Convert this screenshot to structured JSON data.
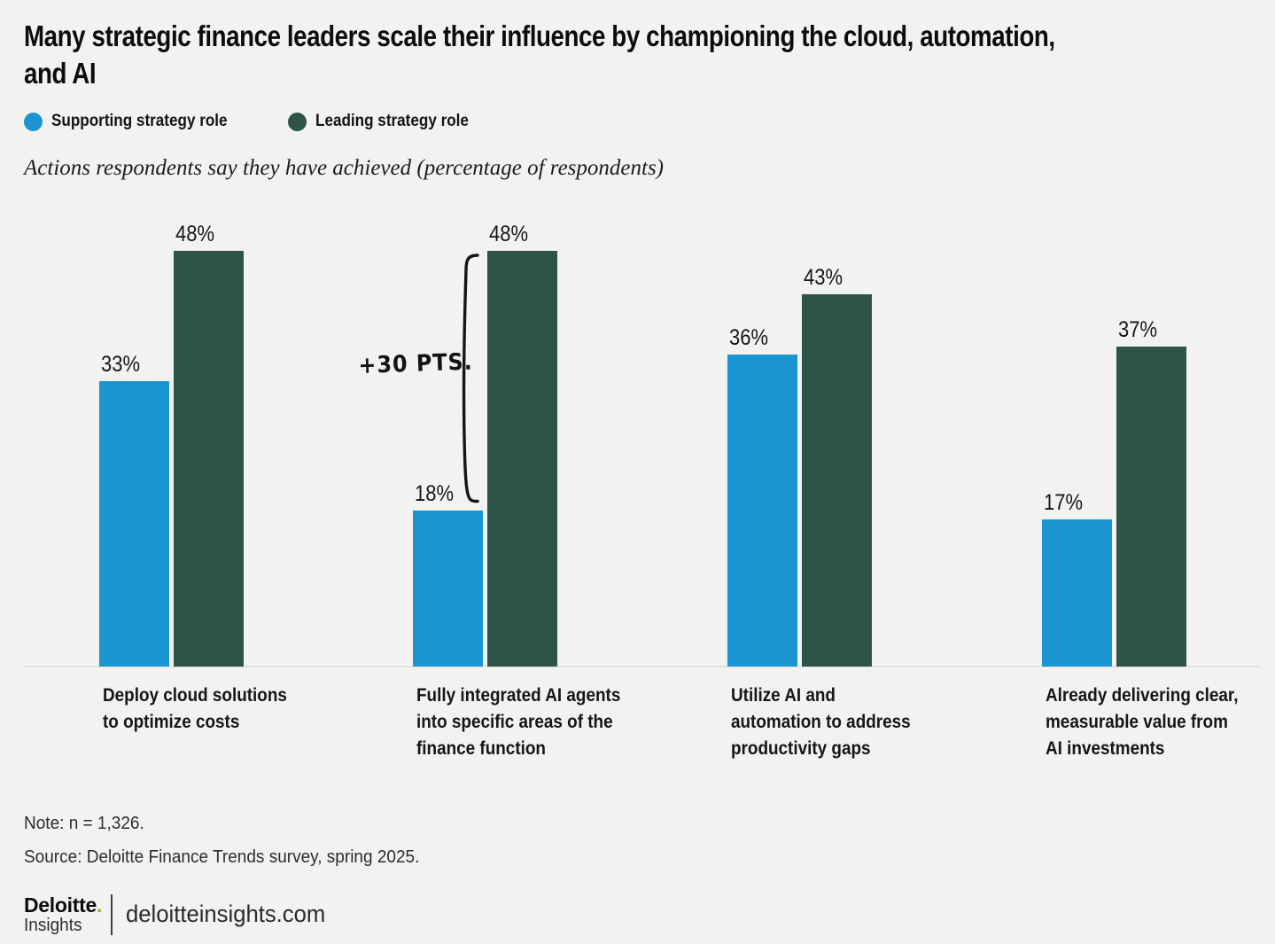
{
  "page": {
    "background": "#f2f2f1"
  },
  "title": "Many strategic finance leaders scale their influence by championing the cloud, automation, and AI",
  "title_lines": [
    "Many strategic finance leaders scale their influence by championing the cloud, automation,",
    "and AI"
  ],
  "legend": [
    {
      "label": "Supporting strategy role",
      "color": "#1b95d2"
    },
    {
      "label": "Leading strategy role",
      "color": "#2d5447"
    }
  ],
  "subtitle": "Actions respondents say they have achieved (percentage of respondents)",
  "chart_data": {
    "type": "bar",
    "title": "Many strategic finance leaders scale their influence by championing the cloud, automation, and AI",
    "subtitle": "Actions respondents say they have achieved (percentage of respondents)",
    "categories": [
      "Deploy cloud solutions to optimize costs",
      "Fully integrated AI agents into specific areas of the finance function",
      "Utilize AI and automation to address productivity gaps",
      "Already delivering clear, measurable value from AI investments"
    ],
    "category_lines": [
      [
        "Deploy cloud solutions",
        "to optimize costs"
      ],
      [
        "Fully integrated AI agents",
        "into specific areas of the",
        "finance function"
      ],
      [
        "Utilize AI and",
        "automation to address",
        "productivity gaps"
      ],
      [
        "Already delivering clear,",
        "measurable value from",
        "AI investments"
      ]
    ],
    "series": [
      {
        "name": "Supporting strategy role",
        "color": "#1b95d2",
        "values": [
          33,
          18,
          36,
          17
        ]
      },
      {
        "name": "Leading strategy role",
        "color": "#2d5447",
        "values": [
          48,
          48,
          43,
          37
        ]
      }
    ],
    "value_suffix": "%",
    "ylim": [
      0,
      50
    ],
    "grid": false,
    "legend_position": "top-left",
    "annotation": {
      "text": "+30 PTS.",
      "category_index": 1
    }
  },
  "note": "Note: n = 1,326.",
  "source": "Source: Deloitte Finance Trends survey, spring 2025.",
  "footer": {
    "brand_name": "Deloitte",
    "brand_dot": ".",
    "brand_sub": "Insights",
    "brand_dot_color": "#86bc25",
    "site": "deloitteinsights.com"
  }
}
